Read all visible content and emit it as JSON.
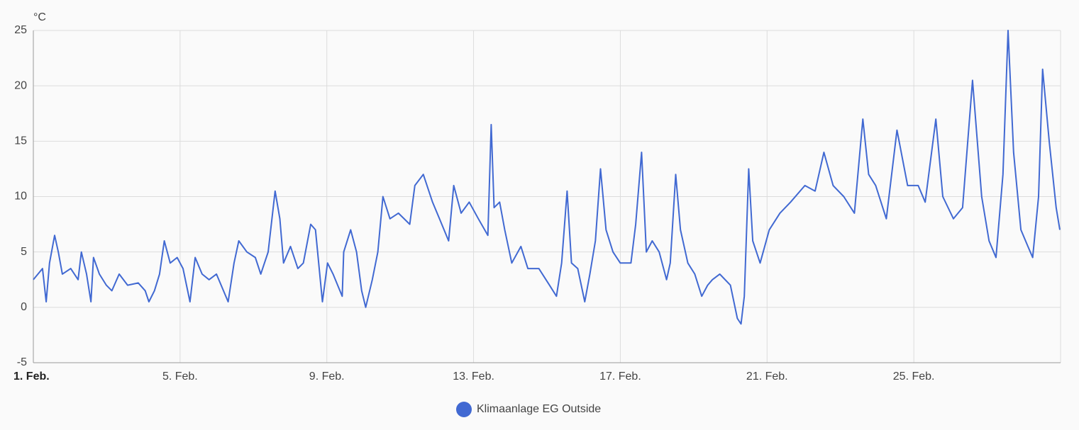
{
  "chart_data": {
    "type": "line",
    "y_unit": "°C",
    "x": [
      1.0,
      1.25,
      1.35,
      1.44,
      1.58,
      1.68,
      1.79,
      2.02,
      2.22,
      2.31,
      2.45,
      2.57,
      2.64,
      2.8,
      2.99,
      3.14,
      3.34,
      3.57,
      3.86,
      4.05,
      4.15,
      4.3,
      4.44,
      4.57,
      4.73,
      4.92,
      5.08,
      5.27,
      5.41,
      5.6,
      5.79,
      5.99,
      6.31,
      6.47,
      6.6,
      6.82,
      7.05,
      7.2,
      7.4,
      7.59,
      7.72,
      7.82,
      8.01,
      8.21,
      8.36,
      8.56,
      8.69,
      8.88,
      9.02,
      9.17,
      9.42,
      9.46,
      9.65,
      9.81,
      9.95,
      10.06,
      10.24,
      10.39,
      10.53,
      10.72,
      10.95,
      11.26,
      11.4,
      11.63,
      11.88,
      12.07,
      12.32,
      12.46,
      12.66,
      12.88,
      13.13,
      13.39,
      13.48,
      13.56,
      13.71,
      13.85,
      14.04,
      14.29,
      14.48,
      14.78,
      15.07,
      15.26,
      15.4,
      15.55,
      15.67,
      15.84,
      16.03,
      16.17,
      16.32,
      16.46,
      16.61,
      16.8,
      17.0,
      17.29,
      17.42,
      17.58,
      17.71,
      17.87,
      18.06,
      18.26,
      18.36,
      18.51,
      18.64,
      18.84,
      19.03,
      19.22,
      19.38,
      19.51,
      19.71,
      20.0,
      20.19,
      20.29,
      20.38,
      20.5,
      20.61,
      20.81,
      21.06,
      21.35,
      21.64,
      22.03,
      22.31,
      22.55,
      22.8,
      23.09,
      23.38,
      23.61,
      23.77,
      23.96,
      24.25,
      24.54,
      24.83,
      25.12,
      25.31,
      25.6,
      25.79,
      26.08,
      26.33,
      26.6,
      26.85,
      27.05,
      27.24,
      27.43,
      27.57,
      27.72,
      27.92,
      28.11,
      28.24,
      28.4,
      28.51,
      28.69,
      28.88,
      28.98
    ],
    "series": [
      {
        "name": "Klimaanlage EG Outside",
        "color": "#4169d2",
        "values": [
          2.5,
          3.5,
          0.5,
          4,
          6.5,
          5,
          3,
          3.5,
          2.5,
          5,
          3,
          0.5,
          4.5,
          3,
          2,
          1.5,
          3,
          2,
          2.2,
          1.5,
          0.5,
          1.5,
          3,
          6,
          4,
          4.5,
          3.5,
          0.5,
          4.5,
          3,
          2.5,
          3,
          0.5,
          4,
          6,
          5,
          4.5,
          3,
          5,
          10.5,
          8,
          4,
          5.5,
          3.5,
          4,
          7.5,
          7,
          0.5,
          4,
          3,
          1,
          5,
          7,
          5,
          1.5,
          0,
          2.5,
          5,
          10,
          8,
          8.5,
          7.5,
          11,
          12,
          9.5,
          8,
          6,
          11,
          8.5,
          9.5,
          8,
          6.5,
          16.5,
          9,
          9.5,
          7,
          4,
          5.5,
          3.5,
          3.5,
          2,
          1,
          4,
          10.5,
          4,
          3.5,
          0.5,
          3,
          6,
          12.5,
          7,
          5,
          4,
          4,
          7.5,
          14,
          5,
          6,
          5,
          2.5,
          4,
          12,
          7,
          4,
          3,
          1,
          2,
          2.5,
          3,
          2,
          -1,
          -1.5,
          1,
          12.5,
          6,
          4,
          7,
          8.5,
          9.5,
          11,
          10.5,
          14,
          11,
          10,
          8.5,
          17,
          12,
          11,
          8,
          16,
          11,
          11,
          9.5,
          17,
          10,
          8,
          9,
          20.5,
          10,
          6,
          4.5,
          12,
          25,
          14,
          7,
          5.5,
          4.5,
          10,
          21.5,
          15,
          9,
          7
        ]
      }
    ],
    "xlim": [
      1,
      29
    ],
    "xticks": [
      {
        "value": 1,
        "label": "1. Feb."
      },
      {
        "value": 5,
        "label": "5. Feb."
      },
      {
        "value": 9,
        "label": "9. Feb."
      },
      {
        "value": 13,
        "label": "13. Feb."
      },
      {
        "value": 17,
        "label": "17. Feb."
      },
      {
        "value": 21,
        "label": "21. Feb."
      },
      {
        "value": 25,
        "label": "25. Feb."
      }
    ],
    "ylim": [
      -5,
      25
    ],
    "yticks": [
      -5,
      0,
      5,
      10,
      15,
      20,
      25
    ],
    "grid": true,
    "legend": "bottom"
  }
}
